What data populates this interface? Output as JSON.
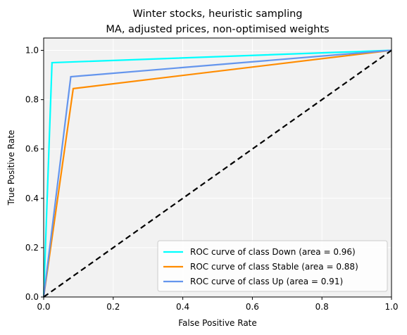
{
  "chart_data": {
    "type": "line",
    "title_line1": "Winter stocks, heuristic sampling",
    "title_line2": "MA, adjusted prices, non-optimised weights",
    "xlabel": "False Positive Rate",
    "ylabel": "True Positive Rate",
    "xlim": [
      0.0,
      1.0
    ],
    "ylim": [
      0.0,
      1.05
    ],
    "xticks": [
      0.0,
      0.2,
      0.4,
      0.6,
      0.8,
      1.0
    ],
    "yticks": [
      0.0,
      0.2,
      0.4,
      0.6,
      0.8,
      1.0
    ],
    "xtick_labels": [
      "0.0",
      "0.2",
      "0.4",
      "0.6",
      "0.8",
      "1.0"
    ],
    "ytick_labels": [
      "0.0",
      "0.2",
      "0.4",
      "0.6",
      "0.8",
      "1.0"
    ],
    "grid": true,
    "background": "#f2f2f2",
    "legend_position": "lower-right",
    "series": [
      {
        "name": "ROC curve of class Down (area = 0.96)",
        "color": "#00ffff",
        "x": [
          0.0,
          0.024,
          1.0
        ],
        "y": [
          0.0,
          0.95,
          1.0
        ]
      },
      {
        "name": "ROC curve of class Stable (area = 0.88)",
        "color": "#ff8c00",
        "x": [
          0.0,
          0.085,
          1.0
        ],
        "y": [
          0.0,
          0.845,
          1.0
        ]
      },
      {
        "name": "ROC curve of class Up (area = 0.91)",
        "color": "#6495ed",
        "x": [
          0.0,
          0.078,
          1.0
        ],
        "y": [
          0.0,
          0.893,
          1.0
        ]
      }
    ],
    "reference_line": {
      "color": "#000000",
      "style": "dashed",
      "x": [
        0.0,
        1.0
      ],
      "y": [
        0.0,
        1.0
      ]
    }
  }
}
